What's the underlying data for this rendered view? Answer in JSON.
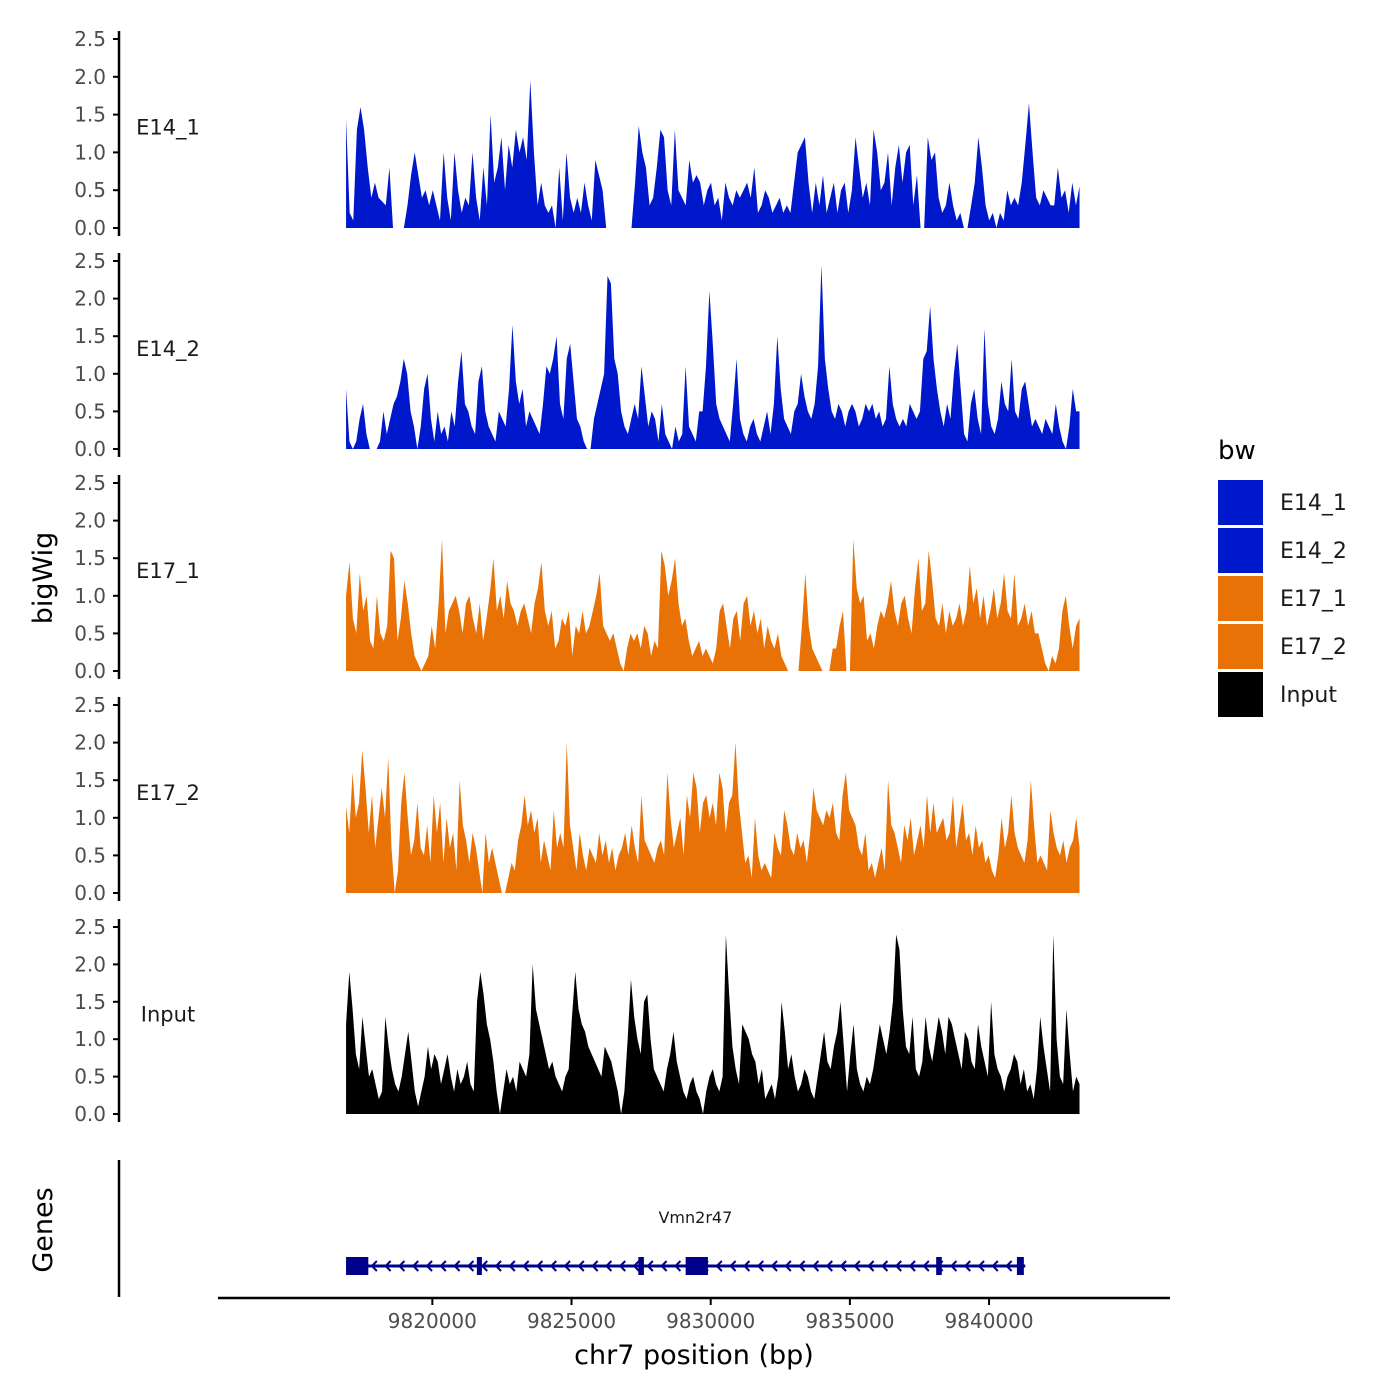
{
  "chart_data": {
    "type": "area",
    "description_free": true,
    "y_axis_title": "bigWig",
    "genes_axis_title": "Genes",
    "x_axis_title": "chr7 position (bp)",
    "x_range": [
      9816900,
      9843250
    ],
    "x_axis_limits": [
      9812300,
      9846500
    ],
    "x_ticks": [
      9820000,
      9825000,
      9830000,
      9835000,
      9840000
    ],
    "x_tick_labels": [
      "9820000",
      "9825000",
      "9830000",
      "9835000",
      "9840000"
    ],
    "y_range": [
      0,
      2.5
    ],
    "y_ticks": [
      0.0,
      0.5,
      1.0,
      1.5,
      2.0,
      2.5
    ],
    "y_tick_labels": [
      "0.0",
      "0.5",
      "1.0",
      "1.5",
      "2.0",
      "2.5"
    ],
    "series": [
      {
        "name": "E14_1",
        "color": "#0018cc",
        "values": [
          1.45,
          0.2,
          0.1,
          1.3,
          1.6,
          1.3,
          0.8,
          0.4,
          0.6,
          0.4,
          0.35,
          0.3,
          0.8,
          0,
          0,
          0,
          0,
          0.3,
          0.7,
          1.0,
          0.7,
          0.4,
          0.5,
          0.3,
          0.5,
          0.3,
          0.1,
          1.0,
          0.4,
          0.1,
          1.0,
          0.5,
          0.2,
          0.4,
          0.3,
          1.0,
          0.4,
          0.1,
          0.8,
          0.3,
          1.5,
          0.6,
          0.8,
          1.2,
          0.5,
          1.1,
          0.8,
          1.3,
          1.0,
          1.2,
          0.9,
          1.95,
          1.0,
          0.3,
          0.6,
          0.3,
          0.2,
          0.3,
          0,
          0.8,
          0.1,
          1.0,
          0.4,
          0.2,
          0.4,
          0.2,
          0.6,
          0.3,
          0.1,
          0.9,
          0.7,
          0.5,
          0,
          0,
          0,
          0,
          0,
          0,
          0,
          0,
          0.6,
          1.35,
          1.0,
          0.8,
          0.3,
          0.4,
          0.8,
          1.3,
          1.2,
          0.5,
          0.3,
          1.3,
          0.5,
          0.4,
          0.3,
          0.9,
          0.6,
          0.7,
          0.6,
          0.3,
          0.5,
          0.6,
          0.3,
          0.4,
          0.1,
          0.6,
          0.4,
          0.3,
          0.5,
          0.4,
          0.5,
          0.6,
          0.4,
          0.8,
          0.2,
          0.3,
          0.5,
          0.4,
          0.2,
          0.3,
          0.4,
          0.2,
          0.3,
          0.2,
          0.6,
          1.0,
          1.1,
          1.2,
          0.6,
          0.2,
          0.6,
          0.3,
          0.7,
          0.2,
          0.4,
          0.6,
          0.2,
          0.5,
          0.6,
          0.2,
          0.5,
          1.2,
          0.8,
          0.4,
          0.6,
          0.3,
          1.3,
          1.0,
          0.5,
          0.6,
          1.0,
          0.3,
          0.8,
          1.1,
          0.6,
          1.0,
          1.1,
          0.3,
          0.7,
          0,
          0,
          1.2,
          0.9,
          1.0,
          0.4,
          0.2,
          0.3,
          0.6,
          0.3,
          0.1,
          0.2,
          0,
          0,
          0.3,
          0.6,
          1.2,
          0.8,
          0.3,
          0.1,
          0.2,
          0,
          0.2,
          0.1,
          0.5,
          0.3,
          0.4,
          0.3,
          0.6,
          1.1,
          1.65,
          1.0,
          0.4,
          0.3,
          0.5,
          0.4,
          0.3,
          0.3,
          0.8,
          0.4,
          0.5,
          0.2,
          0.6,
          0.3,
          0.55
        ]
      },
      {
        "name": "E14_2",
        "color": "#0018cc",
        "values": [
          0.8,
          0.1,
          0,
          0.1,
          0.4,
          0.6,
          0.2,
          0,
          0,
          0,
          0.1,
          0.5,
          0.2,
          0.4,
          0.6,
          0.7,
          0.9,
          1.2,
          1.0,
          0.5,
          0.3,
          0,
          0.3,
          0.8,
          1.0,
          0.4,
          0.1,
          0.5,
          0.2,
          0.3,
          0.1,
          0.5,
          0.3,
          0.9,
          1.3,
          0.6,
          0.5,
          0.3,
          0.2,
          0.9,
          1.1,
          0.5,
          0.3,
          0.2,
          0.1,
          0.5,
          0.4,
          0.3,
          0.8,
          1.65,
          0.9,
          0.6,
          0.8,
          0.3,
          0.5,
          0.4,
          0.3,
          0.2,
          0.6,
          1.1,
          1.0,
          1.2,
          1.5,
          0.6,
          0.4,
          1.2,
          1.4,
          0.9,
          0.4,
          0.3,
          0.1,
          0,
          0,
          0.4,
          0.6,
          0.8,
          1.0,
          2.3,
          2.2,
          1.2,
          1.0,
          0.5,
          0.3,
          0.2,
          0.4,
          0.6,
          0.4,
          1.1,
          0.7,
          0.3,
          0.5,
          0.4,
          0.1,
          0.6,
          0.2,
          0.1,
          0,
          0.3,
          0.1,
          0.2,
          1.1,
          0.3,
          0.2,
          0.1,
          0.5,
          0.5,
          1.1,
          2.1,
          1.4,
          0.6,
          0.4,
          0.3,
          0.2,
          0.1,
          0.6,
          1.2,
          0.4,
          0.2,
          0.1,
          0.3,
          0.4,
          0.2,
          0.1,
          0.3,
          0.5,
          0.2,
          0.6,
          1.5,
          0.8,
          0.4,
          0.3,
          0.2,
          0.5,
          0.6,
          1.0,
          0.7,
          0.5,
          0.4,
          0.6,
          1.1,
          2.45,
          1.2,
          0.8,
          0.5,
          0.4,
          0.6,
          0.5,
          0.3,
          0.5,
          0.6,
          0.5,
          0.3,
          0.4,
          0.6,
          0.5,
          0.6,
          0.4,
          0.5,
          0.3,
          0.4,
          1.1,
          0.6,
          0.4,
          0.3,
          0.4,
          0.3,
          0.6,
          0.5,
          0.4,
          0.5,
          1.2,
          1.3,
          1.9,
          1.2,
          0.8,
          0.5,
          0.3,
          0.6,
          0.4,
          1.0,
          1.4,
          0.8,
          0.2,
          0.1,
          0.6,
          0.8,
          0.4,
          0.2,
          1.6,
          0.6,
          0.3,
          0.2,
          0.4,
          0.9,
          0.6,
          0.5,
          1.2,
          0.5,
          0.4,
          0.8,
          0.9,
          0.6,
          0.3,
          0.4,
          0.3,
          0.2,
          0.4,
          0.3,
          0.2,
          0.6,
          0.3,
          0.1,
          0,
          0.3,
          0.8,
          0.5,
          0.5
        ]
      },
      {
        "name": "E17_1",
        "color": "#e87205",
        "values": [
          1.0,
          1.45,
          0.7,
          0.5,
          1.3,
          0.8,
          1.0,
          0.4,
          0.3,
          1.0,
          0.5,
          0.4,
          0.6,
          1.6,
          1.5,
          0.4,
          0.7,
          1.2,
          0.9,
          0.5,
          0.2,
          0.1,
          0,
          0.1,
          0.2,
          0.6,
          0.3,
          0.9,
          1.75,
          0.5,
          0.8,
          0.9,
          1.0,
          0.8,
          0.5,
          0.9,
          1.0,
          0.7,
          0.5,
          0.9,
          0.4,
          0.7,
          1.05,
          1.5,
          0.8,
          1.0,
          0.7,
          1.2,
          0.9,
          0.8,
          0.6,
          0.8,
          0.9,
          0.7,
          0.5,
          0.9,
          1.1,
          1.45,
          0.8,
          0.6,
          0.8,
          0.3,
          0.4,
          0.7,
          0.6,
          0.8,
          0.2,
          0.6,
          0.5,
          0.8,
          0.5,
          0.6,
          0.8,
          1.0,
          1.3,
          0.6,
          0.5,
          0.4,
          0.5,
          0.3,
          0.1,
          0,
          0.3,
          0.5,
          0.4,
          0.5,
          0.3,
          0.6,
          0.5,
          0.2,
          0.4,
          0.3,
          1.6,
          1.4,
          1.0,
          1.2,
          1.5,
          0.9,
          0.6,
          0.7,
          0.4,
          0.2,
          0.3,
          0.4,
          0.2,
          0.3,
          0.2,
          0.1,
          0.3,
          0.8,
          0.9,
          0.6,
          0.3,
          0.7,
          0.8,
          0.4,
          0.9,
          1.0,
          0.6,
          0.8,
          0.5,
          0.7,
          0.3,
          0.6,
          0.4,
          0.3,
          0.5,
          0.2,
          0.1,
          0,
          0,
          0,
          0,
          0.6,
          1.3,
          0.6,
          0.3,
          0.2,
          0.1,
          0,
          0,
          0,
          0.3,
          0.3,
          0.6,
          0.8,
          0,
          0,
          1.75,
          1.1,
          0.9,
          1.0,
          0.4,
          0.5,
          0.3,
          0.6,
          0.8,
          0.7,
          0.9,
          1.2,
          0.8,
          0.6,
          0.9,
          1.0,
          0.7,
          0.5,
          1.1,
          1.5,
          0.8,
          0.9,
          1.6,
          1.2,
          0.7,
          0.6,
          0.9,
          0.5,
          0.8,
          0.6,
          0.7,
          0.9,
          0.6,
          0.8,
          1.4,
          0.9,
          1.1,
          0.7,
          1.0,
          0.6,
          0.8,
          1.1,
          0.7,
          0.9,
          1.3,
          0.8,
          0.7,
          1.3,
          0.6,
          0.7,
          0.9,
          0.6,
          0.8,
          0.5,
          0.5,
          0.3,
          0.1,
          0,
          0.2,
          0.1,
          0.3,
          0.8,
          1.0,
          0.6,
          0.3,
          0.6,
          0.7
        ]
      },
      {
        "name": "E17_2",
        "color": "#e87205",
        "values": [
          1.15,
          0.8,
          1.6,
          1.0,
          1.2,
          1.9,
          1.4,
          0.8,
          1.3,
          0.6,
          1.0,
          1.4,
          1.0,
          1.8,
          0.6,
          0,
          0.3,
          1.2,
          1.6,
          1.0,
          0.5,
          0.7,
          1.2,
          0.6,
          0.5,
          0.9,
          0.4,
          1.3,
          0.8,
          1.2,
          0.4,
          1.0,
          0.6,
          0.8,
          0.3,
          1.5,
          0.9,
          0.7,
          0.4,
          0.8,
          0.6,
          0.3,
          0,
          0.8,
          0.4,
          0.6,
          0.4,
          0.2,
          0,
          0,
          0.2,
          0.4,
          0.3,
          0.7,
          0.9,
          1.3,
          0.9,
          1.1,
          0.8,
          1.0,
          0.4,
          0.7,
          0.5,
          0.3,
          1.1,
          0.6,
          0.8,
          0.6,
          2.0,
          0.9,
          0.6,
          0.3,
          0.8,
          0.5,
          0.3,
          0.6,
          0.5,
          0.4,
          0.8,
          0.5,
          0.7,
          0.4,
          0.6,
          0.3,
          0.5,
          0.6,
          0.8,
          0.5,
          0.9,
          0.6,
          0.4,
          1.3,
          0.7,
          0.6,
          0.5,
          0.4,
          0.6,
          0.7,
          0.5,
          1.6,
          1.0,
          0.6,
          0.8,
          1.0,
          0.5,
          1.3,
          1.0,
          1.6,
          1.4,
          0.8,
          1.2,
          1.3,
          1.0,
          1.2,
          0.9,
          1.6,
          1.4,
          0.8,
          1.2,
          1.3,
          2.0,
          1.2,
          0.8,
          0.4,
          0.5,
          0.2,
          1.0,
          0.5,
          0.3,
          0.4,
          0.3,
          0.2,
          0.8,
          0.6,
          0.5,
          1.1,
          0.9,
          0.6,
          0.5,
          0.8,
          0.6,
          0.7,
          0.4,
          0.8,
          1.4,
          1.1,
          1.0,
          0.9,
          1.1,
          1.0,
          1.2,
          0.8,
          0.7,
          1.3,
          1.6,
          1.1,
          1.0,
          0.9,
          0.6,
          0.5,
          0.8,
          0.3,
          0.4,
          0.2,
          0.4,
          0.6,
          0.3,
          1.5,
          0.9,
          0.8,
          0.6,
          0.4,
          0.9,
          0.7,
          1.0,
          0.5,
          0.7,
          0.9,
          0.6,
          1.3,
          0.8,
          1.2,
          0.8,
          0.9,
          1.0,
          0.7,
          0.8,
          1.3,
          0.6,
          0.9,
          1.2,
          0.7,
          0.8,
          0.5,
          0.9,
          0.6,
          0.7,
          0.4,
          0.5,
          0.3,
          0.2,
          0.5,
          1.0,
          0.6,
          0.8,
          1.3,
          0.8,
          0.6,
          0.5,
          0.4,
          0.7,
          1.5,
          0.9,
          0.4,
          0.5,
          0.4,
          0.3,
          1.1,
          0.8,
          0.6,
          0.5,
          0.7,
          0.4,
          0.6,
          0.7,
          1.0,
          0.6
        ]
      },
      {
        "name": "Input",
        "color": "#000000",
        "values": [
          1.2,
          1.9,
          1.4,
          0.8,
          0.6,
          1.3,
          0.9,
          0.5,
          0.6,
          0.4,
          0.2,
          0.3,
          1.3,
          0.9,
          0.6,
          0.4,
          0.3,
          0.5,
          0.8,
          1.1,
          0.7,
          0.3,
          0.1,
          0.3,
          0.5,
          0.9,
          0.6,
          0.8,
          0.7,
          0.4,
          0.6,
          0.8,
          0.5,
          0.3,
          0.6,
          0.4,
          0.5,
          0.7,
          0.4,
          0.3,
          1.5,
          1.9,
          1.6,
          1.2,
          1.0,
          0.7,
          0.3,
          0,
          0.3,
          0.6,
          0.4,
          0.5,
          0.3,
          0.7,
          0.6,
          0.5,
          0.8,
          2.0,
          1.4,
          1.2,
          1.0,
          0.8,
          0.6,
          0.7,
          0.5,
          0.4,
          0.3,
          0.5,
          0.6,
          1.3,
          1.9,
          1.4,
          1.2,
          1.1,
          0.9,
          0.8,
          0.7,
          0.6,
          0.5,
          0.9,
          0.8,
          0.7,
          0.5,
          0.3,
          0,
          0.3,
          1.0,
          1.8,
          1.3,
          1.0,
          0.8,
          1.5,
          1.6,
          1.0,
          0.6,
          0.5,
          0.4,
          0.3,
          0.6,
          0.8,
          1.1,
          0.7,
          0.5,
          0.3,
          0.2,
          0.4,
          0.5,
          0.3,
          0.2,
          0,
          0.3,
          0.5,
          0.6,
          0.4,
          0.3,
          0.5,
          2.4,
          1.6,
          0.9,
          0.6,
          0.4,
          1.2,
          1.1,
          1.0,
          0.8,
          0.7,
          0.4,
          0.6,
          0.2,
          0.3,
          0.4,
          0.2,
          0.5,
          1.5,
          1.1,
          0.6,
          0.8,
          0.5,
          0.3,
          0.4,
          0.6,
          0.5,
          0.3,
          0.2,
          0.5,
          0.8,
          1.1,
          0.7,
          0.6,
          0.9,
          1.1,
          1.5,
          0.9,
          0.3,
          0.8,
          1.2,
          0.6,
          0.4,
          0.3,
          0.5,
          0.4,
          0.6,
          0.9,
          1.2,
          1.0,
          0.8,
          1.1,
          1.5,
          2.4,
          2.2,
          1.4,
          0.9,
          0.8,
          1.3,
          0.6,
          0.5,
          0.7,
          1.3,
          0.9,
          0.7,
          1.0,
          1.3,
          1.1,
          0.8,
          1.3,
          1.2,
          1.0,
          0.8,
          0.6,
          1.1,
          1.0,
          0.7,
          0.6,
          1.2,
          0.9,
          0.7,
          0.5,
          1.5,
          0.8,
          0.6,
          0.5,
          0.3,
          0.5,
          0.6,
          0.8,
          0.7,
          0.4,
          0.6,
          0.3,
          0.4,
          0.2,
          0.6,
          1.3,
          0.9,
          0.6,
          0.3,
          2.4,
          1.0,
          0.5,
          0.4,
          1.4,
          0.8,
          0.3,
          0.5,
          0.4
        ]
      }
    ],
    "legend": {
      "title": "bw",
      "position": "right",
      "entries": [
        {
          "label": "E14_1",
          "color": "#0018cc"
        },
        {
          "label": "E14_2",
          "color": "#0018cc"
        },
        {
          "label": "E17_1",
          "color": "#e87205"
        },
        {
          "label": "E17_2",
          "color": "#e87205"
        },
        {
          "label": "Input",
          "color": "#000000"
        }
      ]
    },
    "gene": {
      "name": "Vmn2r47",
      "strand": "-",
      "color": "#00008b",
      "start": 9816900,
      "end": 9841300,
      "exons": [
        {
          "start": 9816900,
          "end": 9817700
        },
        {
          "start": 9821600,
          "end": 9821750
        },
        {
          "start": 9827400,
          "end": 9827600
        },
        {
          "start": 9829100,
          "end": 9829900
        },
        {
          "start": 9838100,
          "end": 9838300
        },
        {
          "start": 9841000,
          "end": 9841250
        }
      ]
    }
  }
}
